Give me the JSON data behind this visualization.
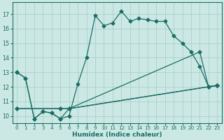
{
  "xlabel": "Humidex (Indice chaleur)",
  "bg_color": "#cce8e4",
  "grid_color": "#aacfcb",
  "line_color": "#1a6e66",
  "xlim": [
    -0.5,
    23.5
  ],
  "ylim": [
    9.5,
    17.8
  ],
  "xticks": [
    0,
    1,
    2,
    3,
    4,
    5,
    6,
    7,
    8,
    9,
    10,
    11,
    12,
    13,
    14,
    15,
    16,
    17,
    18,
    19,
    20,
    21,
    22,
    23
  ],
  "yticks": [
    10,
    11,
    12,
    13,
    14,
    15,
    16,
    17
  ],
  "line1_x": [
    0,
    1,
    2,
    3,
    4,
    5,
    6,
    7,
    8,
    9,
    10,
    11,
    12,
    13,
    14,
    15,
    16,
    17,
    18,
    19,
    20,
    21,
    22,
    23
  ],
  "line1_y": [
    13.0,
    12.6,
    9.8,
    10.3,
    10.2,
    9.8,
    10.0,
    12.2,
    14.0,
    16.9,
    16.2,
    16.4,
    17.2,
    16.5,
    16.7,
    16.6,
    16.5,
    16.5,
    15.5,
    15.0,
    14.4,
    13.4,
    12.0,
    12.1
  ],
  "line2_x": [
    0,
    1,
    2,
    3,
    4,
    5,
    6,
    22,
    23
  ],
  "line2_y": [
    13.0,
    12.6,
    9.8,
    10.3,
    10.2,
    9.8,
    10.5,
    12.0,
    12.1
  ],
  "line3_x": [
    0,
    5,
    6,
    23
  ],
  "line3_y": [
    10.5,
    10.5,
    10.5,
    12.1
  ],
  "line4_x": [
    0,
    5,
    6,
    21,
    22,
    23
  ],
  "line4_y": [
    10.5,
    10.5,
    10.5,
    14.4,
    12.0,
    12.1
  ]
}
